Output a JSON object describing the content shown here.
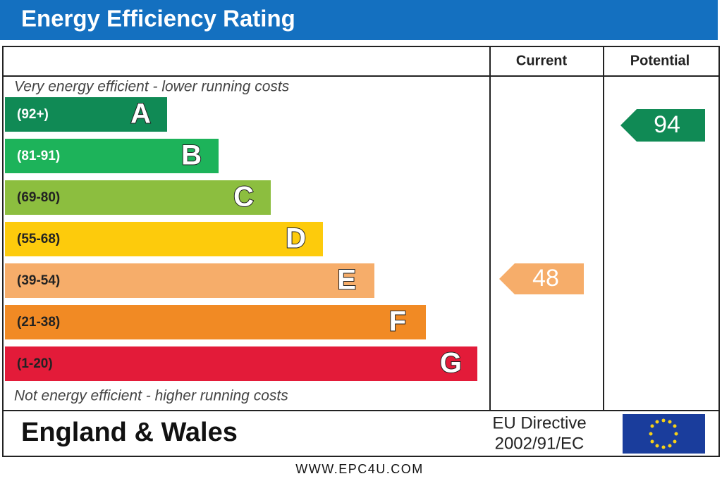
{
  "header": {
    "title": "Energy Efficiency Rating"
  },
  "columns": [
    "Current",
    "Potential"
  ],
  "top_note": "Very energy efficient - lower running costs",
  "bottom_note": "Not energy efficient - higher running costs",
  "bands": [
    {
      "range": "(92+)",
      "letter": "A"
    },
    {
      "range": "(81-91)",
      "letter": "B"
    },
    {
      "range": "(69-80)",
      "letter": "C"
    },
    {
      "range": "(55-68)",
      "letter": "D"
    },
    {
      "range": "(39-54)",
      "letter": "E"
    },
    {
      "range": "(21-38)",
      "letter": "F"
    },
    {
      "range": "(1-20)",
      "letter": "G"
    }
  ],
  "current_rating": 48,
  "potential_rating": 94,
  "footer": {
    "region": "England & Wales",
    "directive": [
      "EU Directive",
      "2002/91/EC"
    ],
    "website": "WWW.EPC4U.COM"
  }
}
